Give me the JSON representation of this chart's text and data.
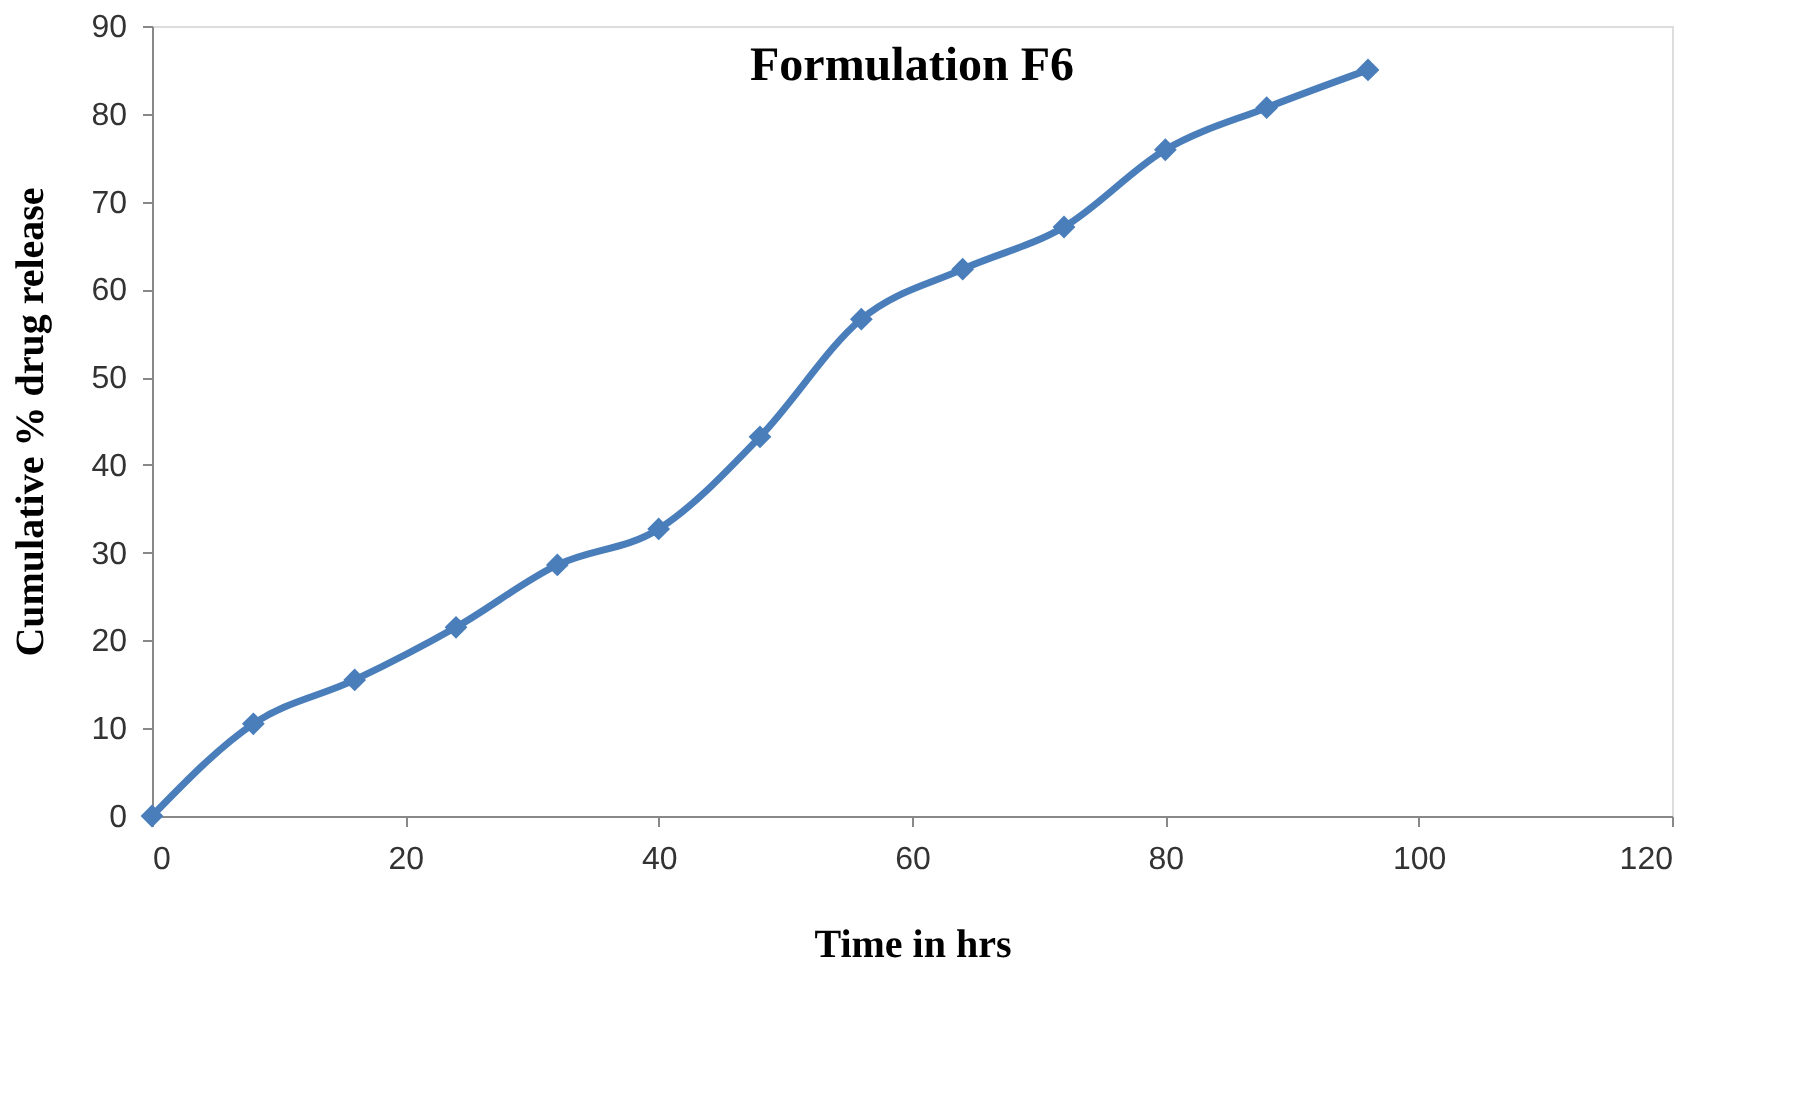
{
  "chart_data": {
    "type": "line",
    "title": "Formulation F6",
    "xlabel": "Time in hrs",
    "ylabel": "Cumulative % drug release",
    "x": [
      0,
      8,
      16,
      24,
      32,
      40,
      48,
      56,
      64,
      72,
      80,
      88,
      96
    ],
    "series": [
      {
        "color": "#4a7ebb",
        "values": [
          0,
          10.5,
          15.5,
          21.5,
          28.6,
          32.7,
          43.2,
          56.6,
          62.3,
          67.1,
          75.9,
          80.7,
          85.0
        ]
      }
    ],
    "xlim": [
      0,
      120
    ],
    "xticks": [
      0,
      20,
      40,
      60,
      80,
      100,
      120
    ],
    "ylim": [
      0,
      90
    ],
    "yticks": [
      0,
      10,
      20,
      30,
      40,
      50,
      60,
      70,
      80,
      90
    ],
    "grid": false,
    "marker": "diamond",
    "line_style": "solid"
  }
}
